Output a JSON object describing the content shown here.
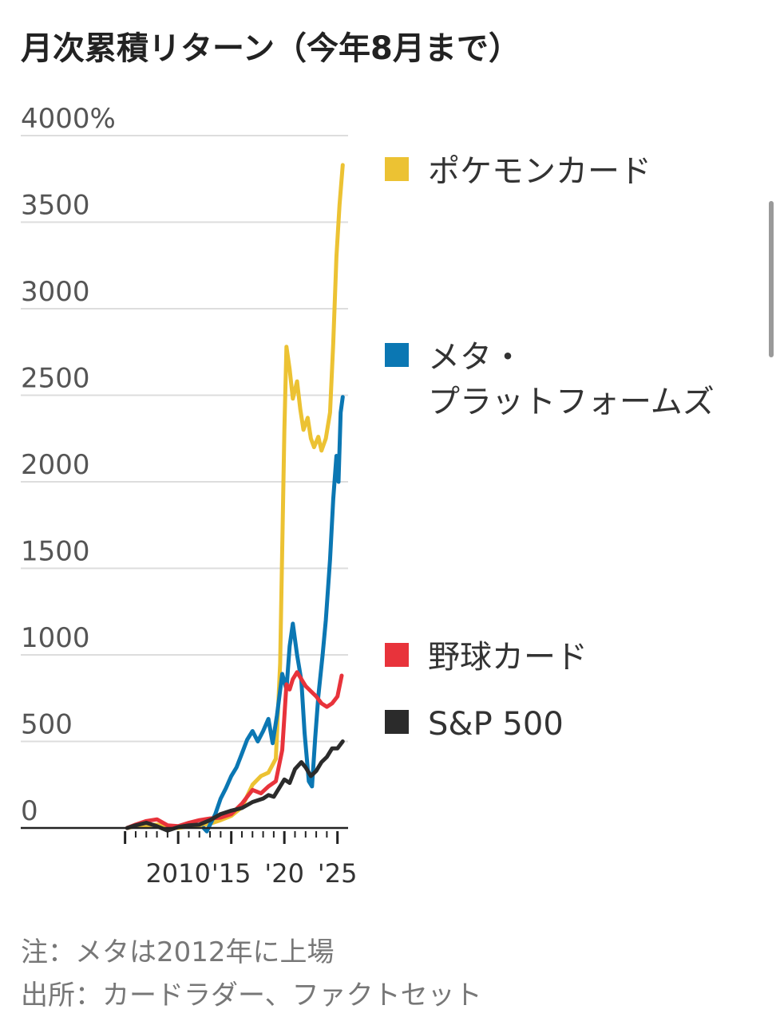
{
  "title": "月次累積リターン（今年8月まで）",
  "notes": {
    "note": "注：メタは2012年に上場",
    "source": "出所：カードラダー、ファクトセット"
  },
  "chart_data": {
    "type": "line",
    "ylim": [
      0,
      4000
    ],
    "yticks": [
      {
        "value": 4000,
        "label": "4000%"
      },
      {
        "value": 3500,
        "label": "3500"
      },
      {
        "value": 3000,
        "label": "3000"
      },
      {
        "value": 2500,
        "label": "2500"
      },
      {
        "value": 2000,
        "label": "2000"
      },
      {
        "value": 1500,
        "label": "1500"
      },
      {
        "value": 1000,
        "label": "1000"
      },
      {
        "value": 500,
        "label": "500"
      },
      {
        "value": 0,
        "label": "0"
      }
    ],
    "xlim": [
      2004.5,
      2025.7
    ],
    "xticks": [
      {
        "value": 2010,
        "label": "2010"
      },
      {
        "value": 2015,
        "label": "'15"
      },
      {
        "value": 2020,
        "label": "'20"
      },
      {
        "value": 2025,
        "label": "'25"
      }
    ],
    "grid": true,
    "legend_position": "right",
    "series": [
      {
        "name": "ポケモンカード",
        "color": "#ecc233",
        "points": [
          [
            2005.2,
            0
          ],
          [
            2006,
            10
          ],
          [
            2007,
            15
          ],
          [
            2008,
            20
          ],
          [
            2009,
            5
          ],
          [
            2010,
            0
          ],
          [
            2011,
            10
          ],
          [
            2012,
            15
          ],
          [
            2013,
            25
          ],
          [
            2014,
            45
          ],
          [
            2015,
            70
          ],
          [
            2016,
            120
          ],
          [
            2017,
            250
          ],
          [
            2017.8,
            300
          ],
          [
            2018.5,
            320
          ],
          [
            2019.2,
            400
          ],
          [
            2019.6,
            950
          ],
          [
            2020,
            2300
          ],
          [
            2020.2,
            2780
          ],
          [
            2020.5,
            2650
          ],
          [
            2020.8,
            2480
          ],
          [
            2021.2,
            2580
          ],
          [
            2021.5,
            2420
          ],
          [
            2021.8,
            2300
          ],
          [
            2022.2,
            2370
          ],
          [
            2022.5,
            2250
          ],
          [
            2022.8,
            2200
          ],
          [
            2023.2,
            2260
          ],
          [
            2023.5,
            2180
          ],
          [
            2023.9,
            2250
          ],
          [
            2024.3,
            2400
          ],
          [
            2024.6,
            2800
          ],
          [
            2024.9,
            3300
          ],
          [
            2025.2,
            3600
          ],
          [
            2025.5,
            3830
          ]
        ]
      },
      {
        "name": "メタ・\nプラットフォームズ",
        "color": "#0b77b3",
        "points": [
          [
            2012.4,
            0
          ],
          [
            2012.7,
            -20
          ],
          [
            2013,
            20
          ],
          [
            2013.5,
            80
          ],
          [
            2014,
            170
          ],
          [
            2014.5,
            230
          ],
          [
            2015,
            300
          ],
          [
            2015.5,
            350
          ],
          [
            2016,
            430
          ],
          [
            2016.5,
            510
          ],
          [
            2017,
            560
          ],
          [
            2017.5,
            500
          ],
          [
            2018,
            560
          ],
          [
            2018.5,
            630
          ],
          [
            2018.9,
            490
          ],
          [
            2019.3,
            650
          ],
          [
            2019.8,
            890
          ],
          [
            2020.2,
            800
          ],
          [
            2020.5,
            1050
          ],
          [
            2020.8,
            1180
          ],
          [
            2021.2,
            1000
          ],
          [
            2021.6,
            850
          ],
          [
            2021.9,
            550
          ],
          [
            2022.3,
            270
          ],
          [
            2022.6,
            240
          ],
          [
            2022.9,
            520
          ],
          [
            2023.2,
            760
          ],
          [
            2023.6,
            1000
          ],
          [
            2023.9,
            1200
          ],
          [
            2024.3,
            1550
          ],
          [
            2024.6,
            1900
          ],
          [
            2024.9,
            2150
          ],
          [
            2025.1,
            2000
          ],
          [
            2025.3,
            2400
          ],
          [
            2025.5,
            2490
          ]
        ]
      },
      {
        "name": "野球カード",
        "color": "#e8333b",
        "points": [
          [
            2005.2,
            0
          ],
          [
            2006,
            20
          ],
          [
            2007,
            40
          ],
          [
            2008,
            50
          ],
          [
            2009,
            15
          ],
          [
            2010,
            10
          ],
          [
            2011,
            30
          ],
          [
            2012,
            45
          ],
          [
            2013,
            55
          ],
          [
            2014,
            60
          ],
          [
            2015,
            80
          ],
          [
            2016,
            140
          ],
          [
            2016.5,
            180
          ],
          [
            2017,
            220
          ],
          [
            2017.8,
            200
          ],
          [
            2018.5,
            240
          ],
          [
            2019.2,
            270
          ],
          [
            2019.8,
            450
          ],
          [
            2020.2,
            830
          ],
          [
            2020.5,
            800
          ],
          [
            2020.8,
            860
          ],
          [
            2021.2,
            900
          ],
          [
            2021.6,
            860
          ],
          [
            2022,
            820
          ],
          [
            2022.5,
            790
          ],
          [
            2023,
            760
          ],
          [
            2023.5,
            720
          ],
          [
            2024,
            700
          ],
          [
            2024.5,
            720
          ],
          [
            2025,
            760
          ],
          [
            2025.4,
            880
          ]
        ]
      },
      {
        "name": "S&P 500",
        "color": "#2b2b2b",
        "points": [
          [
            2005.2,
            0
          ],
          [
            2006,
            15
          ],
          [
            2007,
            30
          ],
          [
            2008,
            10
          ],
          [
            2009,
            -15
          ],
          [
            2010,
            5
          ],
          [
            2011,
            15
          ],
          [
            2012,
            20
          ],
          [
            2013,
            45
          ],
          [
            2014,
            80
          ],
          [
            2015,
            100
          ],
          [
            2016,
            115
          ],
          [
            2017,
            150
          ],
          [
            2018,
            170
          ],
          [
            2018.5,
            190
          ],
          [
            2019,
            180
          ],
          [
            2019.6,
            240
          ],
          [
            2020,
            280
          ],
          [
            2020.5,
            260
          ],
          [
            2021,
            340
          ],
          [
            2021.6,
            380
          ],
          [
            2022,
            350
          ],
          [
            2022.5,
            300
          ],
          [
            2023,
            330
          ],
          [
            2023.5,
            380
          ],
          [
            2024,
            410
          ],
          [
            2024.5,
            460
          ],
          [
            2025,
            460
          ],
          [
            2025.5,
            500
          ]
        ]
      }
    ]
  }
}
